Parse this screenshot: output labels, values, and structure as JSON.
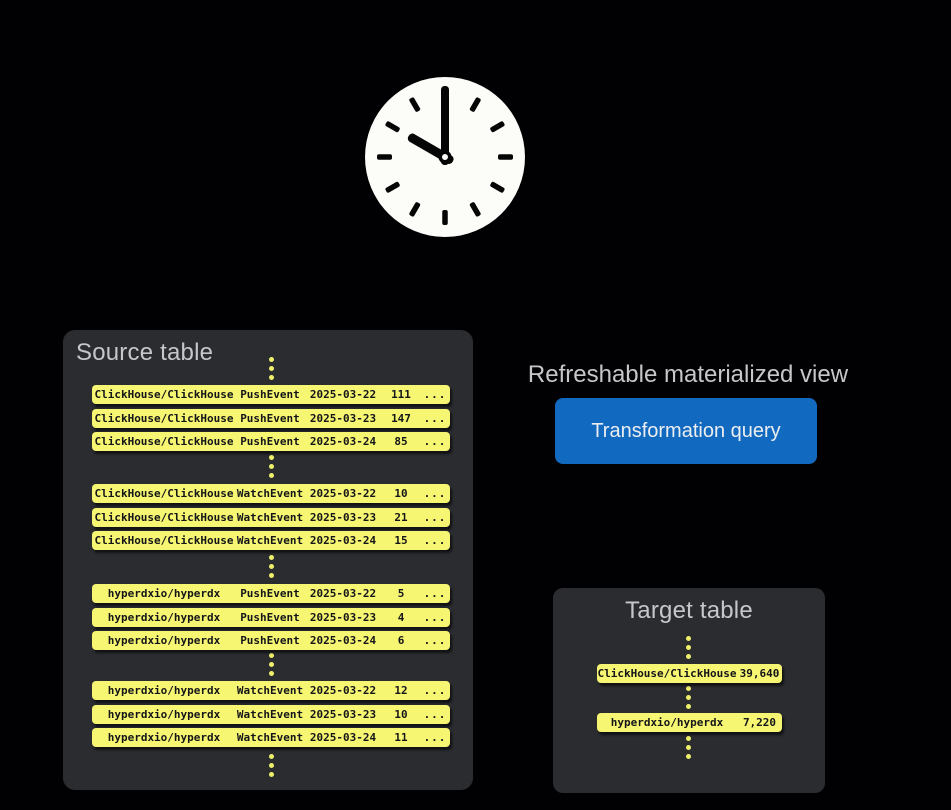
{
  "colors": {
    "background": "#010103",
    "panel": "#2b2c30",
    "row_yellow": "#f7f672",
    "row_text": "#141519",
    "dot_yellow": "#eef06d",
    "title_text": "#c6c7ca",
    "accent_blue": "#1269c0",
    "button_text": "#eceef0",
    "clock_face": "#fcfcf8",
    "clock_hands": "#050505"
  },
  "clock": {
    "time_shown": "10:00"
  },
  "source_table": {
    "title": "Source table",
    "groups": [
      {
        "rows": [
          {
            "repo": "ClickHouse/ClickHouse",
            "event": "PushEvent",
            "date": "2025-03-22",
            "count": "111",
            "more": "..."
          },
          {
            "repo": "ClickHouse/ClickHouse",
            "event": "PushEvent",
            "date": "2025-03-23",
            "count": "147",
            "more": "..."
          },
          {
            "repo": "ClickHouse/ClickHouse",
            "event": "PushEvent",
            "date": "2025-03-24",
            "count": "85",
            "more": "..."
          }
        ]
      },
      {
        "rows": [
          {
            "repo": "ClickHouse/ClickHouse",
            "event": "WatchEvent",
            "date": "2025-03-22",
            "count": "10",
            "more": "..."
          },
          {
            "repo": "ClickHouse/ClickHouse",
            "event": "WatchEvent",
            "date": "2025-03-23",
            "count": "21",
            "more": "..."
          },
          {
            "repo": "ClickHouse/ClickHouse",
            "event": "WatchEvent",
            "date": "2025-03-24",
            "count": "15",
            "more": "..."
          }
        ]
      },
      {
        "rows": [
          {
            "repo": "hyperdxio/hyperdx",
            "event": "PushEvent",
            "date": "2025-03-22",
            "count": "5",
            "more": "..."
          },
          {
            "repo": "hyperdxio/hyperdx",
            "event": "PushEvent",
            "date": "2025-03-23",
            "count": "4",
            "more": "..."
          },
          {
            "repo": "hyperdxio/hyperdx",
            "event": "PushEvent",
            "date": "2025-03-24",
            "count": "6",
            "more": "..."
          }
        ]
      },
      {
        "rows": [
          {
            "repo": "hyperdxio/hyperdx",
            "event": "WatchEvent",
            "date": "2025-03-22",
            "count": "12",
            "more": "..."
          },
          {
            "repo": "hyperdxio/hyperdx",
            "event": "WatchEvent",
            "date": "2025-03-23",
            "count": "10",
            "more": "..."
          },
          {
            "repo": "hyperdxio/hyperdx",
            "event": "WatchEvent",
            "date": "2025-03-24",
            "count": "11",
            "more": "..."
          }
        ]
      }
    ]
  },
  "materialized_view": {
    "title": "Refreshable materialized view",
    "query_label": "Transformation query"
  },
  "target_table": {
    "title": "Target table",
    "rows": [
      {
        "repo": "ClickHouse/ClickHouse",
        "value": "39,640"
      },
      {
        "repo": "hyperdxio/hyperdx",
        "value": "7,220"
      }
    ]
  }
}
